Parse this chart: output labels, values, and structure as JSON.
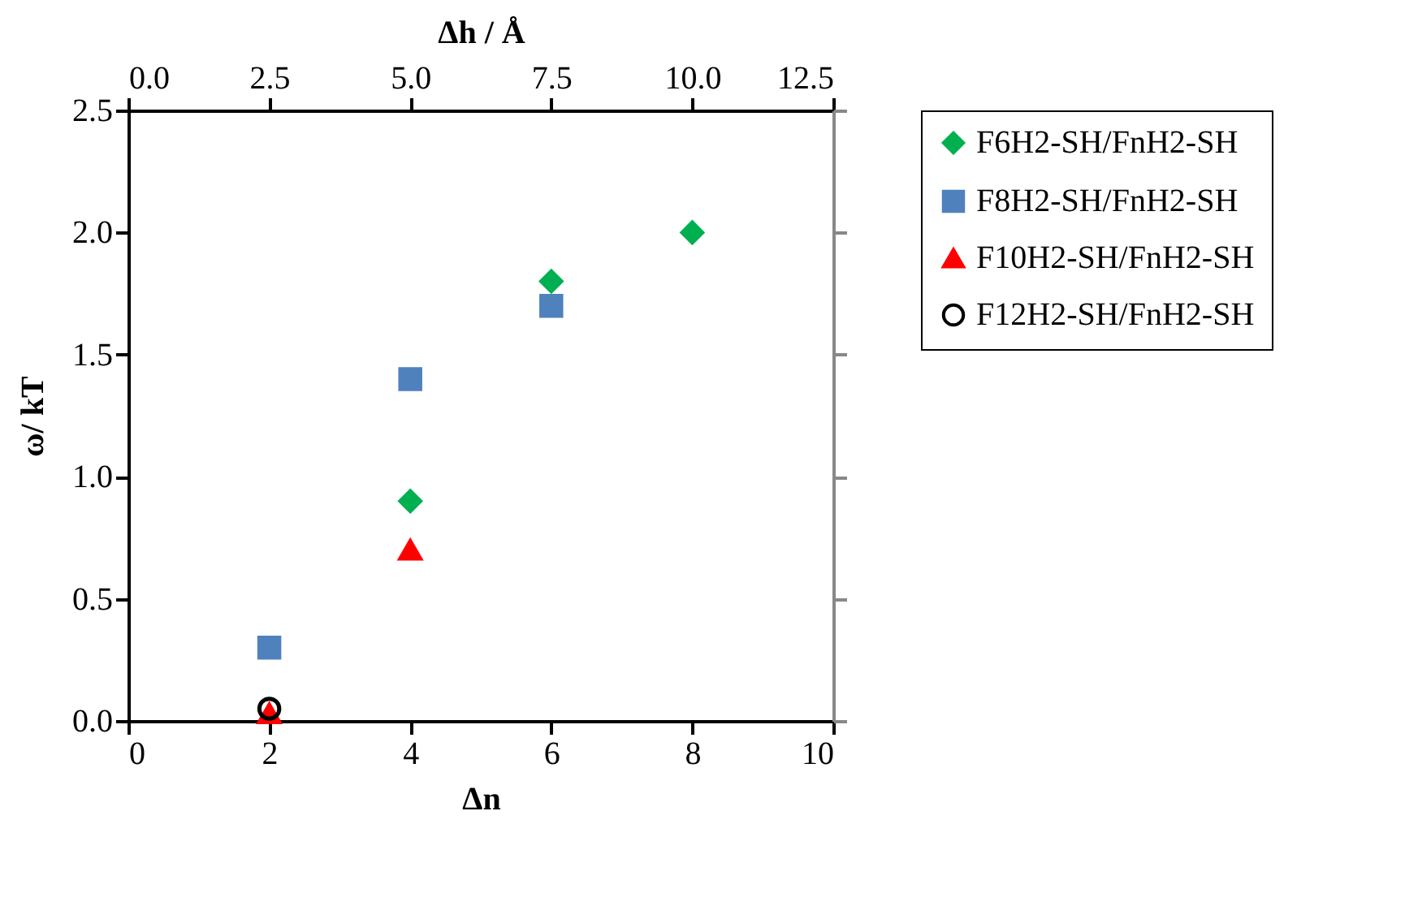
{
  "chart_data": {
    "type": "scatter",
    "xlabel": "Δn",
    "ylabel": "ω/ kT",
    "x2label": "Δh / Å",
    "xlim": [
      0,
      10
    ],
    "xticks": [
      0,
      2,
      4,
      6,
      8,
      10
    ],
    "x2lim": [
      0,
      12.5
    ],
    "x2ticks": [
      {
        "value": 0,
        "label": "0.0"
      },
      {
        "value": 2.5,
        "label": "2.5"
      },
      {
        "value": 5,
        "label": "5.0"
      },
      {
        "value": 7.5,
        "label": "7.5"
      },
      {
        "value": 10,
        "label": "10.0"
      },
      {
        "value": 12.5,
        "label": "12.5"
      }
    ],
    "ylim": [
      0,
      2.5
    ],
    "yticks": [
      {
        "value": 0,
        "label": "0.0"
      },
      {
        "value": 0.5,
        "label": "0.5"
      },
      {
        "value": 1,
        "label": "1.0"
      },
      {
        "value": 1.5,
        "label": "1.5"
      },
      {
        "value": 2,
        "label": "2.0"
      },
      {
        "value": 2.5,
        "label": "2.5"
      }
    ],
    "grid": false,
    "legend": "right",
    "series": [
      {
        "name": "F6H2-SH/FnH2-SH",
        "color": "#00b050",
        "marker": "diamond",
        "x": [
          4,
          6,
          8
        ],
        "values": [
          0.9,
          1.8,
          2.0
        ]
      },
      {
        "name": "F8H2-SH/FnH2-SH",
        "color": "#4f81bd",
        "marker": "square",
        "x": [
          2,
          4,
          6
        ],
        "values": [
          0.3,
          1.4,
          1.7
        ]
      },
      {
        "name": "F10H2-SH/FnH2-SH",
        "color": "#ff0000",
        "marker": "triangle",
        "x": [
          2,
          4
        ],
        "values": [
          0.03,
          0.7
        ]
      },
      {
        "name": "F12H2-SH/FnH2-SH",
        "color": "#000000",
        "marker": "circle",
        "x": [
          2
        ],
        "values": [
          0.05
        ]
      }
    ]
  }
}
